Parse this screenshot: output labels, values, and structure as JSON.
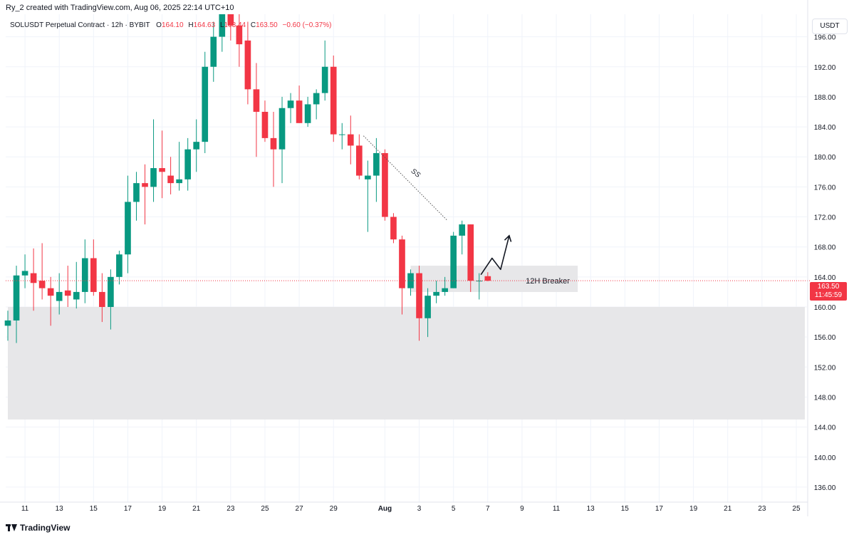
{
  "header": {
    "credit": "Ry_2 created with TradingView.com, Aug 06, 2025 22:14 UTC+10",
    "symbol": "SOLUSDT Perpetual Contract · 12h · BYBIT",
    "o_label": "O",
    "o_value": "164.10",
    "h_label": "H",
    "h_value": "164.63",
    "l_label": "L",
    "l_value": "163.44",
    "c_label": "C",
    "c_value": "163.50",
    "change": "−0.60 (−0.37%)"
  },
  "currency": "USDT",
  "last_price": {
    "value": "163.50",
    "countdown": "11:45:59"
  },
  "footer": {
    "brand": "TradingView"
  },
  "colors": {
    "up": "#089981",
    "down": "#f23645",
    "zone": "#e6e6e8",
    "grid": "#f0f3fa"
  },
  "chart_data": {
    "type": "candlestick",
    "y_axis": {
      "min": 134,
      "max": 199,
      "ticks": [
        136,
        140,
        144,
        148,
        152,
        156,
        160,
        164,
        168,
        172,
        176,
        180,
        184,
        188,
        192,
        196
      ]
    },
    "x_axis": {
      "range": [
        0,
        93
      ],
      "ticks": [
        {
          "i": 2,
          "label": "11"
        },
        {
          "i": 6,
          "label": "13"
        },
        {
          "i": 10,
          "label": "15"
        },
        {
          "i": 14,
          "label": "17"
        },
        {
          "i": 18,
          "label": "19"
        },
        {
          "i": 22,
          "label": "21"
        },
        {
          "i": 26,
          "label": "23"
        },
        {
          "i": 30,
          "label": "25"
        },
        {
          "i": 34,
          "label": "27"
        },
        {
          "i": 38,
          "label": "29"
        },
        {
          "i": 44,
          "label": "Aug"
        },
        {
          "i": 48,
          "label": "3"
        },
        {
          "i": 52,
          "label": "5"
        },
        {
          "i": 56,
          "label": "7"
        },
        {
          "i": 60,
          "label": "9"
        },
        {
          "i": 64,
          "label": "11"
        },
        {
          "i": 68,
          "label": "13"
        },
        {
          "i": 72,
          "label": "15"
        },
        {
          "i": 76,
          "label": "17"
        },
        {
          "i": 80,
          "label": "19"
        },
        {
          "i": 84,
          "label": "21"
        },
        {
          "i": 88,
          "label": "23"
        },
        {
          "i": 92,
          "label": "25"
        }
      ]
    },
    "candles": [
      {
        "o": 157.5,
        "h": 159.5,
        "l": 155.5,
        "c": 158.2
      },
      {
        "o": 158.2,
        "h": 165.5,
        "l": 155.2,
        "c": 164.2
      },
      {
        "o": 164.2,
        "h": 167.0,
        "l": 162.5,
        "c": 164.8
      },
      {
        "o": 164.5,
        "h": 167.8,
        "l": 159.5,
        "c": 163.2
      },
      {
        "o": 163.5,
        "h": 168.5,
        "l": 161.0,
        "c": 162.5
      },
      {
        "o": 162.5,
        "h": 164.0,
        "l": 157.5,
        "c": 161.5
      },
      {
        "o": 160.8,
        "h": 164.5,
        "l": 159.0,
        "c": 162.0
      },
      {
        "o": 162.2,
        "h": 165.5,
        "l": 160.0,
        "c": 161.5
      },
      {
        "o": 161.0,
        "h": 166.0,
        "l": 159.8,
        "c": 162.0
      },
      {
        "o": 162.0,
        "h": 169.0,
        "l": 160.5,
        "c": 166.5
      },
      {
        "o": 166.5,
        "h": 169.0,
        "l": 161.5,
        "c": 162.0
      },
      {
        "o": 162.0,
        "h": 164.5,
        "l": 158.0,
        "c": 160.0
      },
      {
        "o": 160.0,
        "h": 165.0,
        "l": 157.0,
        "c": 164.0
      },
      {
        "o": 164.0,
        "h": 167.5,
        "l": 163.0,
        "c": 167.0
      },
      {
        "o": 167.0,
        "h": 177.5,
        "l": 164.5,
        "c": 174.0
      },
      {
        "o": 174.0,
        "h": 178.0,
        "l": 171.5,
        "c": 176.5
      },
      {
        "o": 176.5,
        "h": 179.0,
        "l": 171.0,
        "c": 176.0
      },
      {
        "o": 176.0,
        "h": 185.0,
        "l": 174.0,
        "c": 178.5
      },
      {
        "o": 178.5,
        "h": 183.5,
        "l": 174.5,
        "c": 178.0
      },
      {
        "o": 177.5,
        "h": 180.0,
        "l": 175.0,
        "c": 176.5
      },
      {
        "o": 176.5,
        "h": 182.0,
        "l": 175.5,
        "c": 177.0
      },
      {
        "o": 177.0,
        "h": 182.5,
        "l": 175.5,
        "c": 181.0
      },
      {
        "o": 181.0,
        "h": 185.0,
        "l": 178.0,
        "c": 182.0
      },
      {
        "o": 182.0,
        "h": 194.0,
        "l": 180.5,
        "c": 192.0
      },
      {
        "o": 192.0,
        "h": 198.0,
        "l": 190.0,
        "c": 196.0
      },
      {
        "o": 196.0,
        "h": 199.0,
        "l": 194.0,
        "c": 199.0
      },
      {
        "o": 199.0,
        "h": 199.0,
        "l": 195.5,
        "c": 197.5
      },
      {
        "o": 197.5,
        "h": 199.0,
        "l": 192.0,
        "c": 195.0
      },
      {
        "o": 195.5,
        "h": 198.0,
        "l": 187.0,
        "c": 189.0
      },
      {
        "o": 189.0,
        "h": 192.5,
        "l": 180.0,
        "c": 186.0
      },
      {
        "o": 186.0,
        "h": 187.5,
        "l": 182.0,
        "c": 182.5
      },
      {
        "o": 182.5,
        "h": 186.0,
        "l": 176.0,
        "c": 181.0
      },
      {
        "o": 181.0,
        "h": 188.0,
        "l": 176.5,
        "c": 186.5
      },
      {
        "o": 186.5,
        "h": 188.5,
        "l": 184.5,
        "c": 187.5
      },
      {
        "o": 187.5,
        "h": 189.5,
        "l": 184.5,
        "c": 184.5
      },
      {
        "o": 184.5,
        "h": 188.0,
        "l": 184.0,
        "c": 187.0
      },
      {
        "o": 187.0,
        "h": 189.0,
        "l": 185.0,
        "c": 188.5
      },
      {
        "o": 188.5,
        "h": 195.5,
        "l": 187.5,
        "c": 192.0
      },
      {
        "o": 192.0,
        "h": 193.5,
        "l": 182.0,
        "c": 183.0
      },
      {
        "o": 183.0,
        "h": 184.5,
        "l": 181.0,
        "c": 183.0
      },
      {
        "o": 183.0,
        "h": 185.5,
        "l": 179.0,
        "c": 181.5
      },
      {
        "o": 181.5,
        "h": 183.0,
        "l": 177.0,
        "c": 177.5
      },
      {
        "o": 177.0,
        "h": 179.5,
        "l": 170.0,
        "c": 177.5
      },
      {
        "o": 177.5,
        "h": 182.5,
        "l": 174.0,
        "c": 180.5
      },
      {
        "o": 180.5,
        "h": 181.0,
        "l": 171.5,
        "c": 172.0
      },
      {
        "o": 172.0,
        "h": 172.5,
        "l": 168.5,
        "c": 169.0
      },
      {
        "o": 169.0,
        "h": 169.5,
        "l": 159.0,
        "c": 162.5
      },
      {
        "o": 162.5,
        "h": 165.0,
        "l": 161.5,
        "c": 164.5
      },
      {
        "o": 164.5,
        "h": 165.5,
        "l": 155.5,
        "c": 158.5
      },
      {
        "o": 158.5,
        "h": 162.5,
        "l": 156.0,
        "c": 161.5
      },
      {
        "o": 161.5,
        "h": 163.5,
        "l": 160.5,
        "c": 162.0
      },
      {
        "o": 162.0,
        "h": 164.0,
        "l": 161.5,
        "c": 162.5
      },
      {
        "o": 162.5,
        "h": 170.0,
        "l": 162.5,
        "c": 169.5
      },
      {
        "o": 169.5,
        "h": 171.5,
        "l": 167.0,
        "c": 171.0
      },
      {
        "o": 171.0,
        "h": 171.0,
        "l": 162.0,
        "c": 163.5
      },
      {
        "o": 163.5,
        "h": 164.5,
        "l": 161.0,
        "c": 163.5
      },
      {
        "o": 164.1,
        "h": 164.63,
        "l": 163.44,
        "c": 163.5
      }
    ],
    "zones": [
      {
        "x0": 0.0,
        "x1": 93.0,
        "y0": 145.0,
        "y1": 160.0
      },
      {
        "x0": 47.0,
        "x1": 66.5,
        "y0": 162.0,
        "y1": 165.5,
        "label": "12H Breaker",
        "label_x": 63.0,
        "label_y": 163.5
      }
    ],
    "annotations": [
      {
        "type": "dotted-line",
        "points": [
          [
            41.5,
            182.8
          ],
          [
            51.3,
            171.5
          ]
        ],
        "label": "SS",
        "label_x": 47.0,
        "label_y": 178.0
      },
      {
        "type": "arrow-path",
        "points": [
          [
            55.2,
            164.3
          ],
          [
            56.5,
            166.5
          ],
          [
            57.5,
            165.0
          ],
          [
            58.5,
            169.5
          ]
        ]
      }
    ],
    "last_price_line": 163.5
  }
}
